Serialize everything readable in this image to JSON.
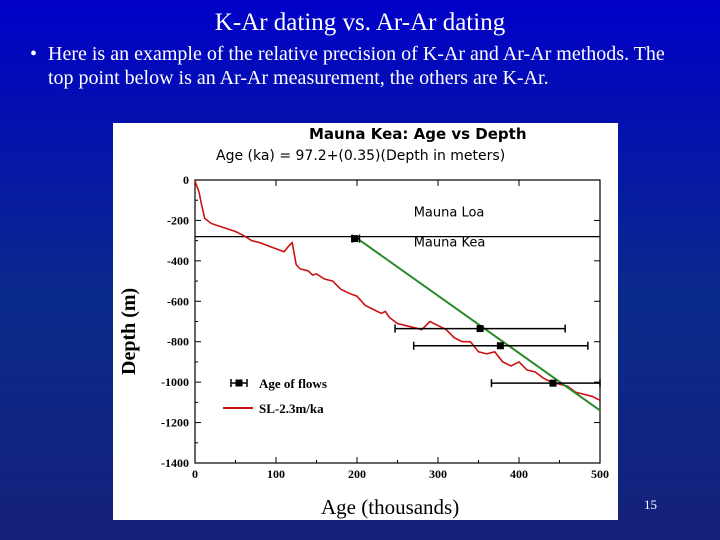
{
  "slide": {
    "title": "K-Ar dating vs. Ar-Ar dating",
    "bullet_text": "Here is an example of the relative precision of K-Ar and Ar-Ar methods.  The top point below is an Ar-Ar measurement, the others are K-Ar.",
    "page_number": "15"
  },
  "colors": {
    "background": "#0a1aa0",
    "fit_line": "#2a8a2a",
    "profile_line": "#cc1111",
    "markers": "#000000"
  },
  "chart_data": {
    "type": "line",
    "title": "Mauna Kea: Age vs Depth",
    "subtitle": "Age (ka) = 97.2+(0.35)(Depth in meters)",
    "xlabel": "Age (thousands)",
    "ylabel": "Depth (m)",
    "xlim": [
      0,
      500
    ],
    "ylim": [
      -1400,
      0
    ],
    "x_ticks": [
      "0",
      "100",
      "200",
      "300",
      "400",
      "500"
    ],
    "y_ticks": [
      "0",
      "-200",
      "-400",
      "-600",
      "-800",
      "-1000",
      "-1200",
      "-1400"
    ],
    "x_tick_values": [
      0,
      100,
      200,
      300,
      400,
      500
    ],
    "y_tick_values": [
      0,
      -200,
      -400,
      -600,
      -800,
      -1000,
      -1200,
      -1400
    ],
    "annotations": [
      {
        "text": "Mauna Loa",
        "x": 270,
        "y": -180
      },
      {
        "text": "Mauna Kea",
        "x": 270,
        "y": -330
      }
    ],
    "legend": {
      "placement": "bottom-left",
      "entries": [
        {
          "label": "Age of flows",
          "kind": "marker"
        },
        {
          "label": "SL-2.3m/ka",
          "kind": "line"
        }
      ]
    },
    "boundary_line": {
      "y": -280
    },
    "series": [
      {
        "name": "Age of flows",
        "points": [
          {
            "x": 197,
            "age_err": [
              194,
              203
            ],
            "y": -290
          },
          {
            "x": 352,
            "age_err": [
              247,
              457
            ],
            "y": -735
          },
          {
            "x": 377,
            "age_err": [
              270,
              485
            ],
            "y": -820
          },
          {
            "x": 442,
            "age_err": [
              366,
              500
            ],
            "y": -1005
          }
        ]
      },
      {
        "name": "SL-2.3m/ka",
        "x": [
          0,
          5,
          8,
          12,
          20,
          35,
          50,
          60,
          70,
          80,
          90,
          100,
          110,
          115,
          120,
          125,
          130,
          140,
          145,
          150,
          160,
          170,
          180,
          190,
          200,
          210,
          220,
          230,
          235,
          240,
          250,
          260,
          270,
          280,
          290,
          300,
          310,
          320,
          330,
          340,
          350,
          360,
          370,
          380,
          390,
          400,
          410,
          420,
          430,
          440,
          450,
          460,
          470,
          480,
          490,
          500
        ],
        "y": [
          -5,
          -60,
          -120,
          -190,
          -215,
          -235,
          -255,
          -275,
          -300,
          -310,
          -325,
          -340,
          -355,
          -330,
          -310,
          -420,
          -440,
          -450,
          -470,
          -465,
          -490,
          -500,
          -540,
          -560,
          -575,
          -620,
          -640,
          -660,
          -650,
          -680,
          -710,
          -720,
          -730,
          -740,
          -700,
          -720,
          -740,
          -780,
          -800,
          -800,
          -850,
          -860,
          -850,
          -900,
          -920,
          -900,
          -940,
          -950,
          -980,
          -1000,
          -1010,
          -1020,
          -1050,
          -1060,
          -1070,
          -1090
        ]
      },
      {
        "name": "fit",
        "x": [
          197,
          500
        ],
        "y": [
          -280,
          -1140
        ]
      }
    ]
  }
}
